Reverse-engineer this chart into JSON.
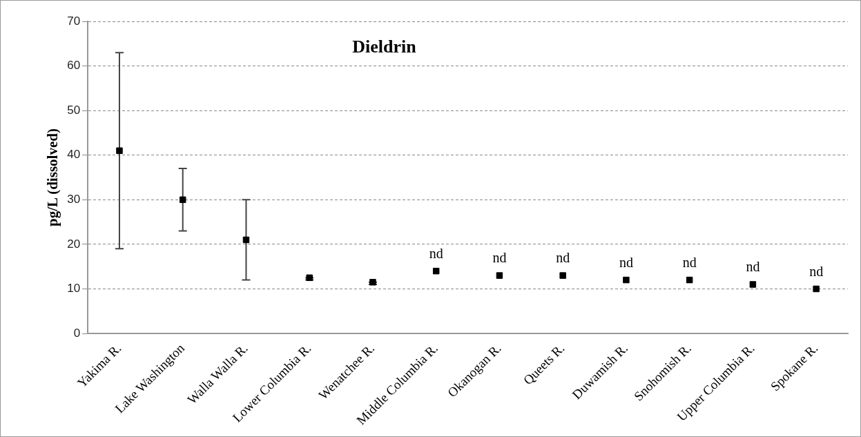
{
  "chart_data": {
    "type": "scatter",
    "title": "Dieldrin",
    "ylabel": "pg/L (dissolved)",
    "categories": [
      "Yakima R.",
      "Lake Washington",
      "Walla Walla R.",
      "Lower Columbia R.",
      "Wenatchee R.",
      "Middle Columbia R.",
      "Okanogan R.",
      "Queets R.",
      "Duwamish R.",
      "Snohomish R.",
      "Upper Columbia R.",
      "Spokane R."
    ],
    "series": [
      {
        "color": "#000000",
        "values": [
          41,
          30,
          21,
          12.5,
          11.5,
          14,
          13,
          13,
          12,
          12,
          11,
          10
        ],
        "errors": [
          [
            19,
            63
          ],
          [
            23,
            37
          ],
          [
            12,
            30
          ],
          [
            12,
            12.5
          ],
          [
            11,
            11.5
          ],
          null,
          null,
          null,
          null,
          null,
          null,
          null
        ],
        "value_labels": [
          null,
          null,
          null,
          null,
          null,
          "nd",
          "nd",
          "nd",
          "nd",
          "nd",
          "nd",
          "nd"
        ]
      }
    ],
    "ylim": [
      0,
      70
    ],
    "yticks": [
      0,
      10,
      20,
      30,
      40,
      50,
      60,
      70
    ],
    "grid": "y",
    "legend": false
  }
}
